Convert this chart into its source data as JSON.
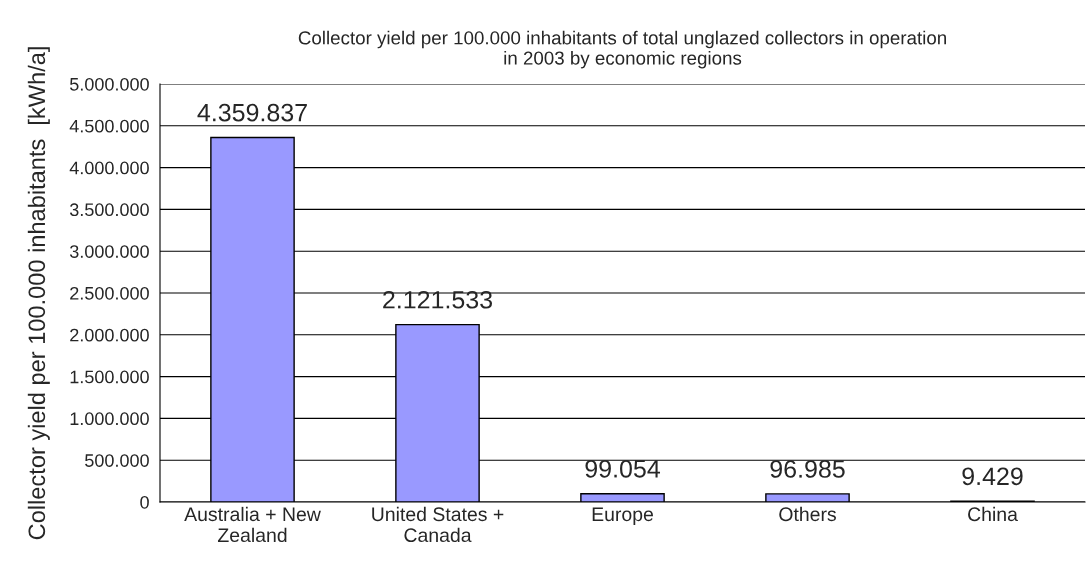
{
  "chart_data": {
    "type": "bar",
    "title": "Collector yield per 100.000 inhabitants of total unglazed collectors in operation\nin 2003 by economic regions",
    "ylabel": "Collector yield per 100.000 inhabitants  [kWh/a]",
    "categories": [
      "Australia + New\nZealand",
      "United States +\nCanada",
      "Europe",
      "Others",
      "China"
    ],
    "values": [
      4359837,
      2121533,
      99054,
      96985,
      9429
    ],
    "value_labels": [
      "4.359.837",
      "2.121.533",
      "99.054",
      "96.985",
      "9.429"
    ],
    "color": "#9999ff",
    "ylim": [
      0,
      5000000
    ],
    "yticks": [
      0,
      {
        "value": 500000,
        "label": "500.000"
      },
      {
        "value": 1000000,
        "label": "1.000.000"
      },
      {
        "value": 1500000,
        "label": "1.500.000"
      },
      {
        "value": 2000000,
        "label": "2.000.000"
      },
      {
        "value": 2500000,
        "label": "2.500.000"
      },
      {
        "value": 3000000,
        "label": "3.000.000"
      },
      {
        "value": 3500000,
        "label": "3.500.000"
      },
      {
        "value": 4000000,
        "label": "4.000.000"
      },
      {
        "value": 4500000,
        "label": "4.500.000"
      },
      {
        "value": 5000000,
        "label": "5.000.000"
      }
    ],
    "grid": "y",
    "legend": false
  }
}
